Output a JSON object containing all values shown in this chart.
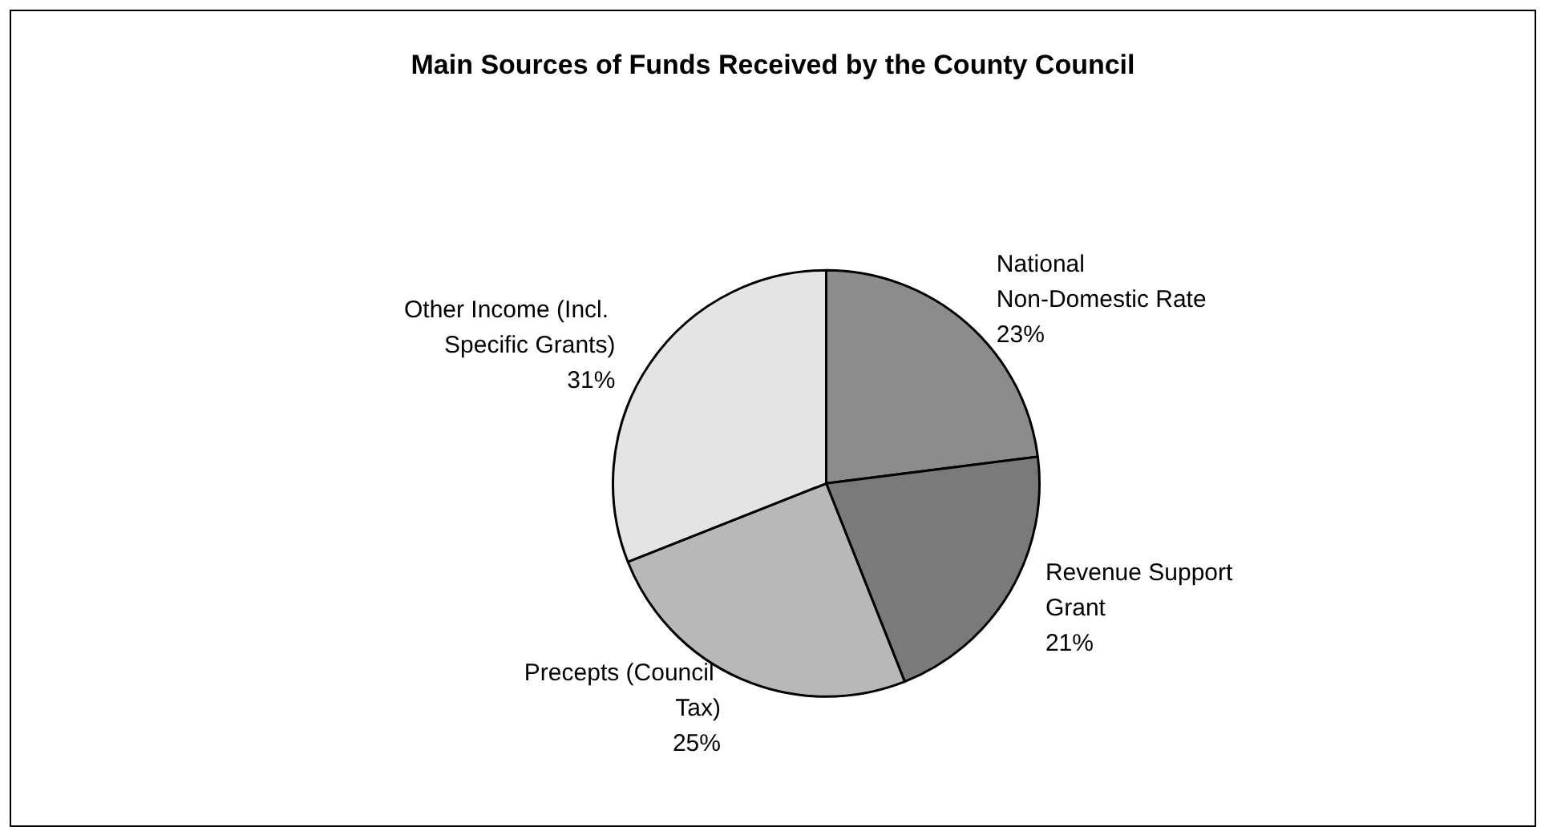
{
  "chart_data": {
    "type": "pie",
    "title": "Main Sources of Funds Received by the County Council",
    "categories": [
      "National Non-Domestic Rate",
      "Revenue Support Grant",
      "Precepts (Council Tax)",
      "Other Income (Incl. Specific Grants)"
    ],
    "values": [
      23,
      21,
      25,
      31
    ],
    "value_labels": [
      "23%",
      "21%",
      "25%",
      "31%"
    ],
    "colors": [
      "#8c8c8c",
      "#7a7a7a",
      "#b8b8b8",
      "#e4e4e4"
    ]
  }
}
